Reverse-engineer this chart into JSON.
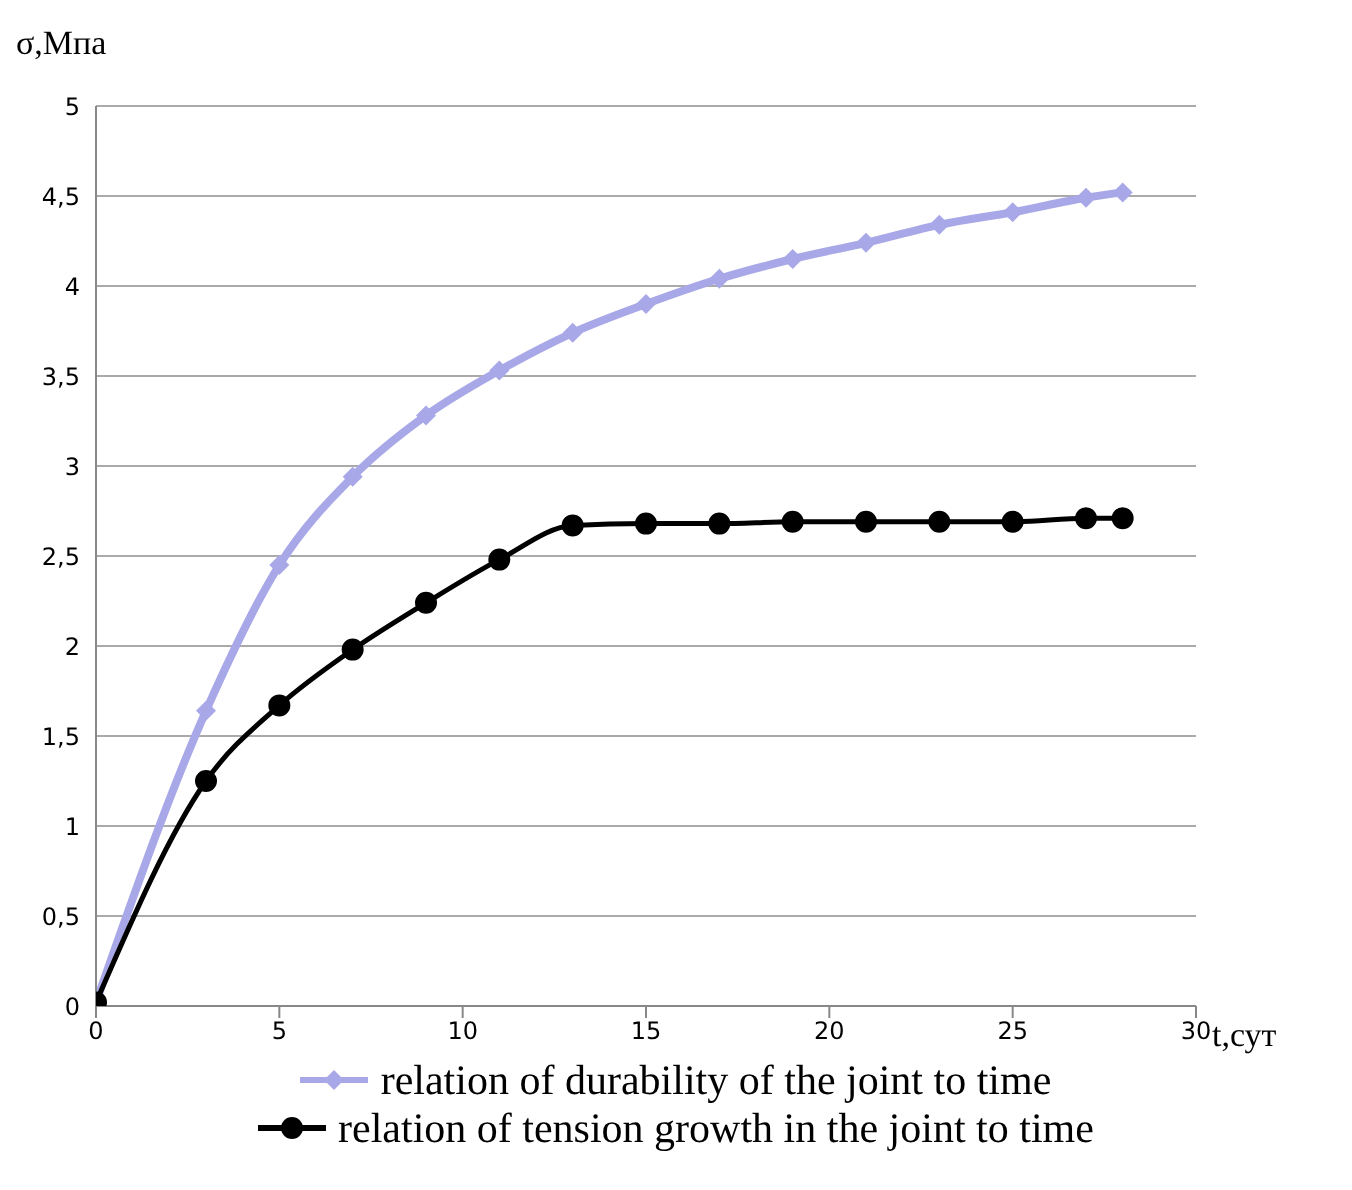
{
  "chart_data": {
    "type": "line",
    "xlabel": "t,сут",
    "ylabel": "σ,Мпа",
    "x": [
      0,
      3,
      5,
      7,
      9,
      11,
      13,
      15,
      17,
      19,
      21,
      23,
      25,
      27,
      28
    ],
    "series": [
      {
        "name": "relation of durability of the joint to time",
        "color": "#a8a8e8",
        "marker": "diamond",
        "values": [
          0.02,
          1.64,
          2.45,
          2.94,
          3.28,
          3.53,
          3.74,
          3.9,
          4.04,
          4.15,
          4.24,
          4.34,
          4.41,
          4.49,
          4.52
        ]
      },
      {
        "name": "relation of tension growth in the joint to time",
        "color": "#000000",
        "marker": "circle",
        "values": [
          0.02,
          1.25,
          1.67,
          1.98,
          2.24,
          2.48,
          2.67,
          2.68,
          2.68,
          2.69,
          2.69,
          2.69,
          2.69,
          2.71,
          2.71
        ]
      }
    ],
    "xlim": [
      0,
      30
    ],
    "xticks": [
      0,
      5,
      10,
      15,
      20,
      25,
      30
    ],
    "ylim": [
      0,
      5
    ],
    "yticks": [
      0,
      {
        "value": 0.5,
        "label": "0,5"
      },
      1,
      {
        "value": 1.5,
        "label": "1,5"
      },
      2,
      {
        "value": 2.5,
        "label": "2,5"
      },
      3,
      {
        "value": 3.5,
        "label": "3,5"
      },
      4,
      {
        "value": 4.5,
        "label": "4,5"
      },
      5
    ],
    "grid": "y",
    "legend": "bottom"
  }
}
